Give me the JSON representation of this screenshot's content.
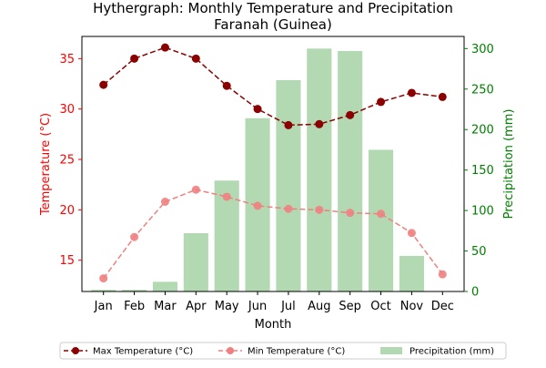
{
  "chart_data": {
    "type": "bar+line",
    "title": "Hythergraph: Monthly Temperature and Precipitation\nFaranah (Guinea)",
    "xlabel": "Month",
    "ylabel_left": "Temperature (°C)",
    "ylabel_right": "Precipitation (mm)",
    "categories": [
      "Jan",
      "Feb",
      "Mar",
      "Apr",
      "May",
      "Jun",
      "Jul",
      "Aug",
      "Sep",
      "Oct",
      "Nov",
      "Dec"
    ],
    "y_left": {
      "ticks": [
        15,
        20,
        25,
        30,
        35
      ],
      "range": [
        11.9,
        37.2
      ]
    },
    "y_right": {
      "ticks": [
        0,
        50,
        100,
        150,
        200,
        250,
        300
      ],
      "range": [
        0,
        315
      ]
    },
    "series": [
      {
        "name": "Max Temperature (°C)",
        "type": "line",
        "axis": "left",
        "color": "#8b0000",
        "linestyle": "dashed",
        "values": [
          32.4,
          35.0,
          36.1,
          35.0,
          32.3,
          30.0,
          28.4,
          28.5,
          29.4,
          30.7,
          31.6,
          31.2
        ]
      },
      {
        "name": "Min Temperature (°C)",
        "type": "line",
        "axis": "left",
        "color": "#f08080",
        "linestyle": "dashed",
        "values": [
          13.2,
          17.3,
          20.8,
          22.0,
          21.3,
          20.4,
          20.1,
          20.0,
          19.7,
          19.6,
          17.7,
          13.6
        ]
      },
      {
        "name": "Precipitation (mm)",
        "type": "bar",
        "axis": "right",
        "color": "#b2d9b2",
        "values": [
          2,
          2,
          12,
          72,
          137,
          214,
          261,
          300,
          297,
          175,
          44,
          0
        ]
      }
    ],
    "legend_position": "bottom-center",
    "axis_label_colors": {
      "left": "#ff0000",
      "right": "#008000"
    },
    "grid": false
  }
}
